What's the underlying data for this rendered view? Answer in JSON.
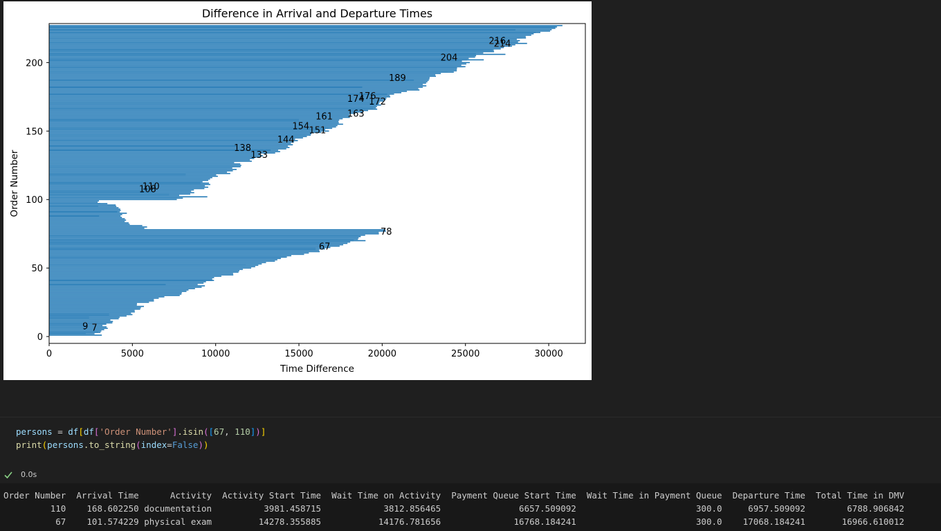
{
  "chart_data": {
    "type": "bar",
    "orientation": "horizontal",
    "title": "Difference in Arrival and Departure Times",
    "xlabel": "Time Difference",
    "ylabel": "Order Number",
    "xlim": [
      0,
      32200
    ],
    "ylim": [
      -5,
      228.5
    ],
    "x_ticks": [
      0,
      5000,
      10000,
      15000,
      20000,
      25000,
      30000
    ],
    "y_ticks": [
      0,
      50,
      100,
      150,
      200
    ],
    "bar_color": "#1f77b4",
    "grid": false,
    "segments": [
      {
        "y0": 1,
        "y1": 2,
        "x0": 2750,
        "x1": 2650
      },
      {
        "y0": 2,
        "y1": 25,
        "x0": 2700,
        "x1": 5800
      },
      {
        "y0": 25,
        "y1": 50,
        "x0": 6300,
        "x1": 11800
      },
      {
        "y0": 50,
        "y1": 67,
        "x0": 12000,
        "x1": 17500
      },
      {
        "y0": 67,
        "y1": 79,
        "x0": 18000,
        "x1": 20300
      },
      {
        "y0": 79,
        "y1": 85,
        "x0": 5700,
        "x1": 4800
      },
      {
        "y0": 85,
        "y1": 100,
        "x0": 4900,
        "x1": 3100
      },
      {
        "y0": 100,
        "y1": 108,
        "x0": 8000,
        "x1": 8500
      },
      {
        "y0": 108,
        "y1": 128,
        "x0": 9000,
        "x1": 11600
      },
      {
        "y0": 128,
        "y1": 150,
        "x0": 12200,
        "x1": 16300
      },
      {
        "y0": 150,
        "y1": 180,
        "x0": 16400,
        "x1": 21500
      },
      {
        "y0": 180,
        "y1": 210,
        "x0": 21800,
        "x1": 26600
      },
      {
        "y0": 210,
        "y1": 227,
        "x0": 27000,
        "x1": 30600
      }
    ],
    "extra_bars": [
      {
        "y": 2,
        "x": 2200
      },
      {
        "y": 3,
        "x": 2950
      },
      {
        "y": 7,
        "x": 2350
      },
      {
        "y": 9,
        "x": 2100
      },
      {
        "y": 10,
        "x": 3800
      },
      {
        "y": 14,
        "x": 2400
      },
      {
        "y": 16,
        "x": 3600
      },
      {
        "y": 38,
        "x": 7000
      },
      {
        "y": 41,
        "x": 9900
      },
      {
        "y": 52,
        "x": 11800
      },
      {
        "y": 58,
        "x": 14200
      },
      {
        "y": 64,
        "x": 16000
      },
      {
        "y": 68,
        "x": 16400
      },
      {
        "y": 70,
        "x": 19000
      },
      {
        "y": 73,
        "x": 18700
      },
      {
        "y": 88,
        "x": 3000
      },
      {
        "y": 91,
        "x": 4100
      },
      {
        "y": 95,
        "x": 2950
      },
      {
        "y": 97,
        "x": 3500
      },
      {
        "y": 102,
        "x": 9500
      },
      {
        "y": 104,
        "x": 7200
      },
      {
        "y": 106,
        "x": 6200
      },
      {
        "y": 112,
        "x": 9600
      },
      {
        "y": 118,
        "x": 8200
      },
      {
        "y": 124,
        "x": 11500
      },
      {
        "y": 136,
        "x": 13300
      },
      {
        "y": 139,
        "x": 11300
      },
      {
        "y": 143,
        "x": 14400
      },
      {
        "y": 147,
        "x": 15400
      },
      {
        "y": 152,
        "x": 17000
      },
      {
        "y": 158,
        "x": 15000
      },
      {
        "y": 166,
        "x": 19700
      },
      {
        "y": 170,
        "x": 19400
      },
      {
        "y": 177,
        "x": 20300
      },
      {
        "y": 182,
        "x": 18800
      },
      {
        "y": 187,
        "x": 21900
      },
      {
        "y": 193,
        "x": 24300
      },
      {
        "y": 197,
        "x": 25000
      },
      {
        "y": 202,
        "x": 26100
      },
      {
        "y": 206,
        "x": 27400
      },
      {
        "y": 209,
        "x": 26700
      },
      {
        "y": 214,
        "x": 28700
      },
      {
        "y": 218,
        "x": 28400
      },
      {
        "y": 222,
        "x": 29500
      },
      {
        "y": 224,
        "x": 28000
      },
      {
        "y": 226,
        "x": 30500
      }
    ],
    "annotations": [
      {
        "text": "9",
        "x": 2000,
        "y": 8
      },
      {
        "text": "7",
        "x": 2550,
        "y": 7
      },
      {
        "text": "67",
        "x": 16200,
        "y": 66
      },
      {
        "text": "78",
        "x": 19900,
        "y": 77
      },
      {
        "text": "108",
        "x": 5400,
        "y": 108
      },
      {
        "text": "110",
        "x": 5600,
        "y": 110
      },
      {
        "text": "133",
        "x": 12100,
        "y": 133
      },
      {
        "text": "138",
        "x": 11100,
        "y": 138
      },
      {
        "text": "144",
        "x": 13700,
        "y": 144
      },
      {
        "text": "151",
        "x": 15600,
        "y": 151
      },
      {
        "text": "154",
        "x": 14600,
        "y": 154
      },
      {
        "text": "161",
        "x": 16000,
        "y": 161
      },
      {
        "text": "163",
        "x": 17900,
        "y": 163
      },
      {
        "text": "172",
        "x": 19200,
        "y": 172
      },
      {
        "text": "174",
        "x": 17900,
        "y": 174
      },
      {
        "text": "176",
        "x": 18600,
        "y": 176
      },
      {
        "text": "189",
        "x": 20400,
        "y": 189
      },
      {
        "text": "204",
        "x": 23500,
        "y": 204
      },
      {
        "text": "214",
        "x": 26700,
        "y": 214
      },
      {
        "text": "216",
        "x": 26400,
        "y": 216
      }
    ]
  },
  "code": {
    "line1": {
      "var": "persons",
      "eq": " = ",
      "df1": "df",
      "br_open": "[",
      "df2": "df",
      "br2_open": "[",
      "col": "'Order Number'",
      "br2_close": "]",
      "method": ".isin",
      "paren_open": "(",
      "list_open": "[",
      "n1": "67",
      "comma": ", ",
      "n2": "110",
      "list_close": "]",
      "paren_close": ")",
      "br_close": "]"
    },
    "line2": {
      "fn": "print",
      "paren_open": "(",
      "obj": "persons",
      "method": ".to_string",
      "paren2_open": "(",
      "kwarg": "index",
      "eq": "=",
      "val": "False",
      "paren2_close": ")",
      "paren_close": ")"
    }
  },
  "status": {
    "time": "0.0s",
    "check_color": "#89d185"
  },
  "output": {
    "header": "Order Number  Arrival Time      Activity  Activity Start Time  Wait Time on Activity  Payment Queue Start Time  Wait Time in Payment Queue  Departure Time  Total Time in DMV",
    "row1": "         110    168.602250 documentation          3981.458715            3812.856465               6657.509092                       300.0     6957.509092        6788.906842",
    "row2": "          67    101.574229 physical exam         14278.355885           14176.781656              16768.184241                       300.0    17068.184241       16966.610012"
  }
}
